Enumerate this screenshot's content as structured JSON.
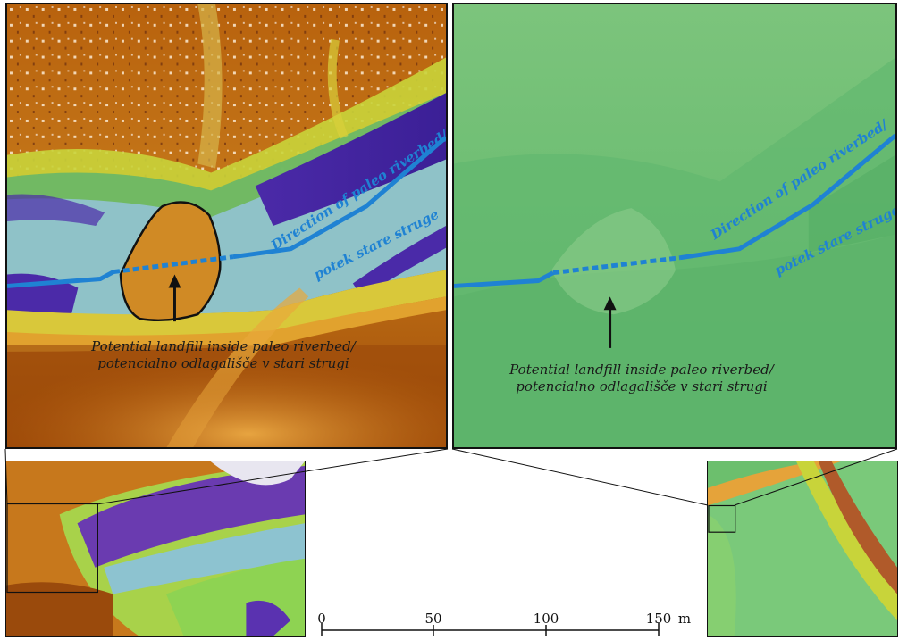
{
  "panel_a": {
    "landfill_label_line1": "Potential landfill inside paleo riverbed/",
    "landfill_label_line2": "potencialno odlagališče v stari strugi",
    "river_label_line1": "Direction of paleo riverbed/",
    "river_label_line2": "potek stare struge"
  },
  "panel_b": {
    "landfill_label_line1": "Potential landfill inside paleo riverbed/",
    "landfill_label_line2": "potencialno odlagališče v stari strugi",
    "river_label_line1": "Direction of paleo riverbed/",
    "river_label_line2": "potek stare struge"
  },
  "scale_bar": {
    "ticks": [
      "0",
      "50",
      "100",
      "150"
    ],
    "unit": "m"
  },
  "colors": {
    "river_line": "#1f82d3",
    "landfill_outline": "#111111"
  }
}
